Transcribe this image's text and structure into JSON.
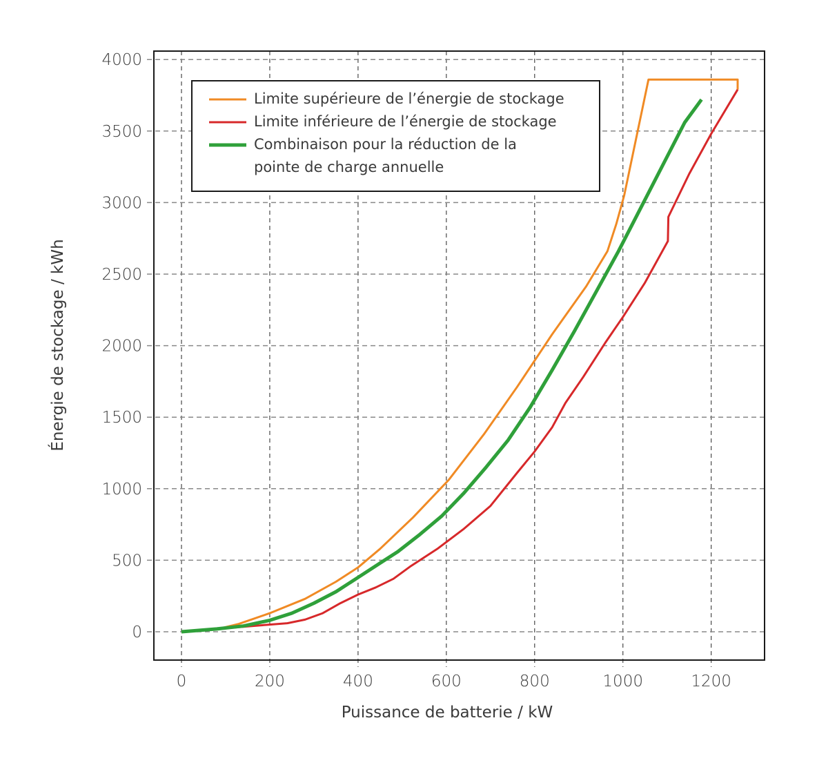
{
  "chart_data": {
    "type": "line",
    "title": "",
    "xlabel": "Puissance de batterie / kW",
    "ylabel": "Énergie de stockage / kWh",
    "xlim": [
      -62,
      1318
    ],
    "ylim": [
      -200,
      4060
    ],
    "xticks": [
      0,
      200,
      400,
      600,
      800,
      1000,
      1200
    ],
    "yticks": [
      0,
      500,
      1000,
      1500,
      2000,
      2500,
      3000,
      3500,
      4000
    ],
    "grid": true,
    "legend_position": "upper left",
    "series": [
      {
        "name": "Limite supérieure de l’énergie de stockage",
        "color": "#f08a24",
        "width": 3,
        "points": [
          [
            0,
            0
          ],
          [
            90,
            25
          ],
          [
            130,
            55
          ],
          [
            200,
            130
          ],
          [
            280,
            230
          ],
          [
            350,
            350
          ],
          [
            400,
            450
          ],
          [
            450,
            580
          ],
          [
            525,
            800
          ],
          [
            605,
            1060
          ],
          [
            685,
            1380
          ],
          [
            760,
            1710
          ],
          [
            840,
            2080
          ],
          [
            917,
            2415
          ],
          [
            965,
            2660
          ],
          [
            985,
            2850
          ],
          [
            1003,
            3050
          ],
          [
            1058,
            3860
          ],
          [
            1260,
            3860
          ],
          [
            1260,
            3790
          ]
        ]
      },
      {
        "name": "Limite inférieure de l’énergie de stockage",
        "color": "#d7282a",
        "width": 3,
        "points": [
          [
            0,
            0
          ],
          [
            80,
            20
          ],
          [
            140,
            35
          ],
          [
            200,
            50
          ],
          [
            240,
            60
          ],
          [
            280,
            85
          ],
          [
            320,
            130
          ],
          [
            360,
            200
          ],
          [
            400,
            260
          ],
          [
            440,
            310
          ],
          [
            480,
            370
          ],
          [
            520,
            460
          ],
          [
            580,
            580
          ],
          [
            640,
            720
          ],
          [
            700,
            880
          ],
          [
            760,
            1110
          ],
          [
            800,
            1260
          ],
          [
            840,
            1430
          ],
          [
            870,
            1600
          ],
          [
            910,
            1780
          ],
          [
            960,
            2020
          ],
          [
            1000,
            2200
          ],
          [
            1050,
            2440
          ],
          [
            1100,
            2720
          ],
          [
            1102,
            2730
          ],
          [
            1103,
            2900
          ],
          [
            1150,
            3200
          ],
          [
            1200,
            3480
          ],
          [
            1260,
            3790
          ]
        ]
      },
      {
        "name": "Combinaison pour la réduction de la pointe de charge annuelle",
        "color": "#2fa03a",
        "width": 5,
        "points": [
          [
            0,
            0
          ],
          [
            80,
            20
          ],
          [
            140,
            40
          ],
          [
            200,
            80
          ],
          [
            250,
            130
          ],
          [
            300,
            200
          ],
          [
            350,
            280
          ],
          [
            400,
            380
          ],
          [
            450,
            480
          ],
          [
            490,
            560
          ],
          [
            540,
            680
          ],
          [
            590,
            810
          ],
          [
            640,
            970
          ],
          [
            690,
            1150
          ],
          [
            740,
            1340
          ],
          [
            790,
            1570
          ],
          [
            840,
            1830
          ],
          [
            890,
            2100
          ],
          [
            940,
            2380
          ],
          [
            990,
            2660
          ],
          [
            1040,
            2960
          ],
          [
            1090,
            3260
          ],
          [
            1140,
            3560
          ],
          [
            1178,
            3720
          ]
        ]
      }
    ]
  },
  "legend": {
    "items": [
      {
        "lines": [
          "Limite supérieure de l’énergie de stockage"
        ],
        "color": "#f08a24"
      },
      {
        "lines": [
          "Limite inférieure de l’énergie de stockage"
        ],
        "color": "#d7282a"
      },
      {
        "lines": [
          "Combinaison pour la réduction de la",
          "pointe de charge annuelle"
        ],
        "color": "#2fa03a"
      }
    ]
  },
  "axes": {
    "x_ticks_labels": [
      "0",
      "200",
      "400",
      "600",
      "800",
      "1000",
      "1200"
    ],
    "y_ticks_labels": [
      "0",
      "500",
      "1000",
      "1500",
      "2000",
      "2500",
      "3000",
      "3500",
      "4000"
    ]
  }
}
